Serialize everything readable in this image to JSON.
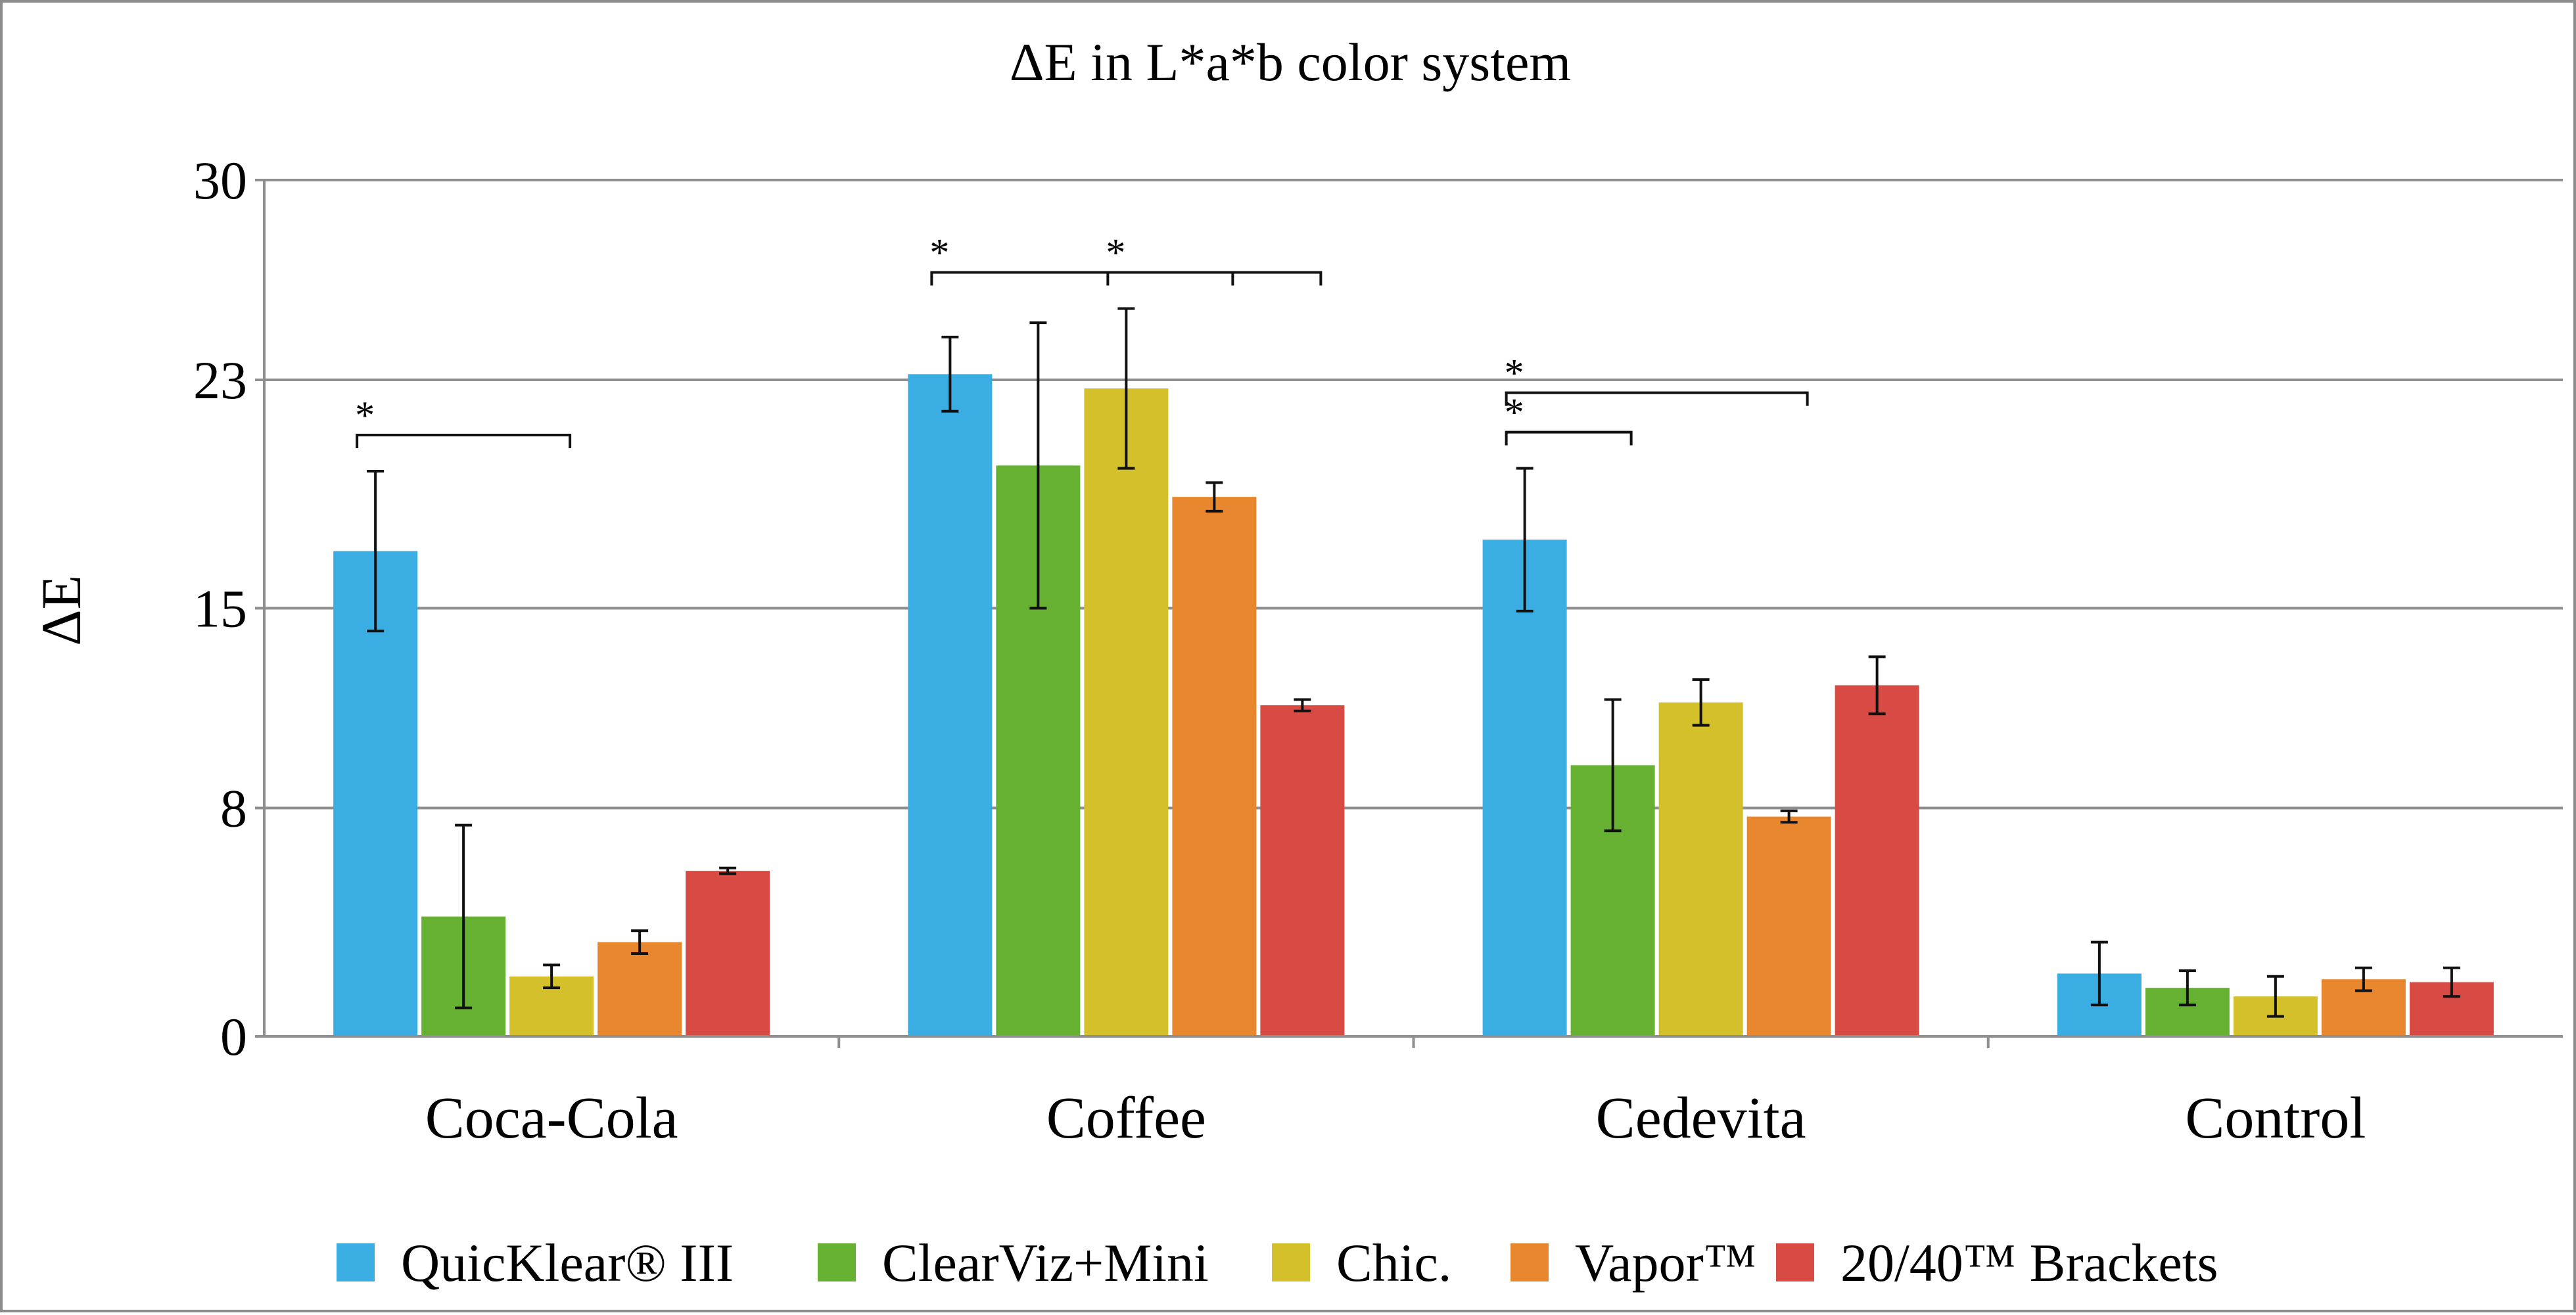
{
  "chart_data": {
    "type": "bar",
    "title": "ΔE in L*a*b color system",
    "xlabel": "",
    "ylabel": "ΔE",
    "ylim": [
      0,
      30
    ],
    "yticks": [
      0,
      8,
      15,
      23,
      30
    ],
    "grid": true,
    "legend_position": "bottom",
    "categories": [
      "Coca-Cola",
      "Coffee",
      "Cedevita",
      "Control"
    ],
    "series": [
      {
        "name": "QuicKlear® III",
        "color": "#3aaee3",
        "values": [
          17.0,
          23.2,
          17.4,
          2.2
        ],
        "errors": [
          2.8,
          1.3,
          2.5,
          1.1
        ]
      },
      {
        "name": "ClearViz+Mini",
        "color": "#66b032",
        "values": [
          4.2,
          20.0,
          9.5,
          1.7
        ],
        "errors": [
          3.2,
          5.0,
          2.3,
          0.6
        ]
      },
      {
        "name": "Chic.",
        "color": "#d4c02a",
        "values": [
          2.1,
          22.7,
          11.7,
          1.4
        ],
        "errors": [
          0.4,
          2.8,
          0.8,
          0.7
        ]
      },
      {
        "name": "Vapor™",
        "color": "#e8872e",
        "values": [
          3.3,
          18.9,
          7.7,
          2.0
        ],
        "errors": [
          0.4,
          0.5,
          0.2,
          0.4
        ]
      },
      {
        "name": "20/40™ Brackets",
        "color": "#d84a44",
        "values": [
          5.8,
          11.6,
          12.3,
          1.9
        ],
        "errors": [
          0.1,
          0.2,
          1.0,
          0.5
        ]
      }
    ],
    "significance": [
      {
        "category": "Coca-Cola",
        "from_series": 0,
        "to_series": 2,
        "label": "*"
      },
      {
        "category": "Coffee",
        "from_series": 0,
        "to_series": 4,
        "label": "*"
      },
      {
        "category": "Coffee",
        "from_series": 2,
        "to_series": 3,
        "label": "*"
      },
      {
        "category": "Cedevita",
        "from_series": 0,
        "to_series": 1,
        "label": "*"
      },
      {
        "category": "Cedevita",
        "from_series": 0,
        "to_series": 3,
        "label": "*"
      }
    ]
  }
}
